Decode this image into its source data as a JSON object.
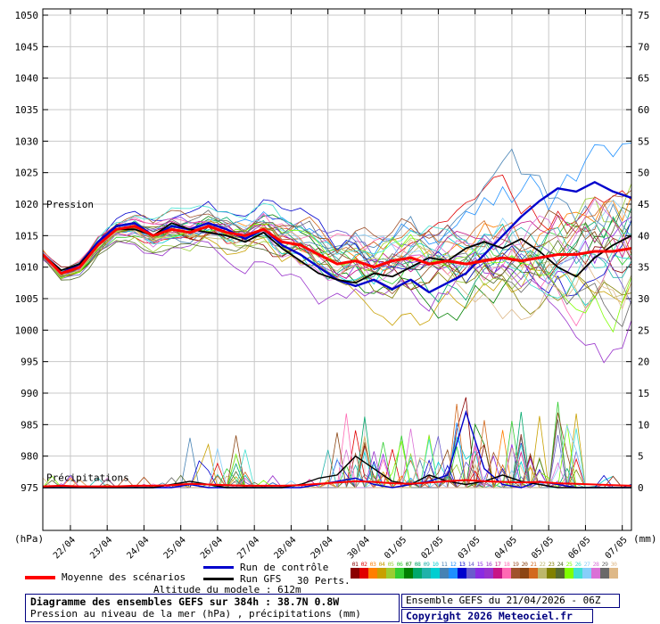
{
  "colors": {
    "background": "#ffffff",
    "grid": "#c8c8c8",
    "frame": "#000000",
    "mean": "#ff0000",
    "control": "#0000cc",
    "gfs": "#000000"
  },
  "chart_data": {
    "type": "line",
    "title": "Diagramme des ensembles GEFS sur 384h : 38.7N 0.8W",
    "subtitle": "Pression au niveau de la mer (hPa) , précipitations (mm)",
    "x_axis": {
      "tick_labels": [
        "22/04",
        "23/04",
        "24/04",
        "25/04",
        "26/04",
        "27/04",
        "28/04",
        "29/04",
        "30/04",
        "01/05",
        "02/05",
        "03/05",
        "04/05",
        "05/05",
        "06/05",
        "07/05"
      ],
      "first_tick_hour": 18,
      "tick_interval_hours": 24,
      "total_hours": 384
    },
    "y_left": {
      "unit": "(hPa)",
      "min": 975,
      "max": 1050,
      "step": 5
    },
    "y_right": {
      "unit": "(mm)",
      "min": 0,
      "max": 75,
      "step": 5
    },
    "labels": {
      "pressure": "Pression",
      "precip": "Précipitations"
    },
    "sample_step_hours": 12,
    "series": [
      {
        "id": "mean",
        "name": "Moyenne des scénarios",
        "color": "#ff0000",
        "width": 3,
        "pressure": [
          1012,
          1009,
          1010,
          1013.5,
          1016,
          1016.5,
          1015,
          1016,
          1015.5,
          1016.5,
          1015.5,
          1015,
          1016,
          1014,
          1013.5,
          1012,
          1010.5,
          1011,
          1010,
          1011,
          1011.5,
          1010.5,
          1011,
          1010.5,
          1011,
          1011.5,
          1011,
          1011.5,
          1012,
          1012,
          1012.5,
          1012.5,
          1013
        ],
        "precip": [
          0.2,
          0.3,
          0.2,
          0.2,
          0.2,
          0.3,
          0.3,
          0.4,
          0.6,
          0.5,
          0.4,
          0.3,
          0.3,
          0.3,
          0.4,
          0.6,
          0.8,
          1,
          0.9,
          0.7,
          0.6,
          0.8,
          1,
          1.2,
          1,
          0.9,
          0.8,
          0.9,
          0.7,
          0.6,
          0.5,
          0.4,
          0.3
        ]
      },
      {
        "id": "control",
        "name": "Run de contrôle",
        "color": "#0000cc",
        "width": 2.4,
        "pressure": [
          1012,
          1009,
          1010.5,
          1014,
          1016.5,
          1017,
          1015,
          1016.5,
          1016,
          1017,
          1016,
          1014.5,
          1016,
          1013.5,
          1012,
          1010,
          1008,
          1007,
          1008,
          1006.5,
          1008,
          1006,
          1007.5,
          1009,
          1012,
          1015,
          1018,
          1020.5,
          1022.5,
          1022,
          1023.5,
          1022,
          1021
        ],
        "precip": [
          0,
          0,
          0,
          0,
          0,
          0,
          0,
          0,
          0.5,
          0,
          0,
          0,
          0,
          0,
          0,
          0.5,
          1,
          1.5,
          0.5,
          0,
          0.5,
          1,
          2,
          12,
          3,
          0.5,
          0,
          1,
          0.5,
          0,
          0,
          0,
          0
        ]
      },
      {
        "id": "gfs",
        "name": "Run GFS",
        "color": "#000000",
        "width": 1.8,
        "pressure": [
          1012,
          1009.5,
          1010.5,
          1013.5,
          1016,
          1016,
          1015,
          1017,
          1016,
          1015.5,
          1015,
          1014,
          1015.5,
          1013,
          1011,
          1009,
          1008,
          1007.5,
          1009,
          1008.5,
          1010,
          1011.5,
          1011,
          1013,
          1014,
          1013,
          1014.5,
          1012.5,
          1010,
          1008.5,
          1011.5,
          1013.5,
          1015
        ],
        "precip": [
          0,
          0,
          0,
          0,
          0,
          0,
          0,
          0.5,
          1,
          0.5,
          0,
          0,
          0,
          0,
          0.5,
          1.5,
          2,
          5,
          3,
          1,
          0.5,
          2,
          1,
          0.5,
          1,
          2,
          1,
          0.5,
          0,
          0,
          0,
          0,
          0
        ]
      }
    ],
    "members": {
      "label": "30 Perts.",
      "count": 30,
      "numbers": [
        "01",
        "02",
        "03",
        "04",
        "05",
        "06",
        "07",
        "08",
        "09",
        "10",
        "11",
        "12",
        "13",
        "14",
        "15",
        "16",
        "17",
        "18",
        "19",
        "20",
        "21",
        "22",
        "23",
        "24",
        "25",
        "26",
        "27",
        "28",
        "29",
        "30"
      ],
      "colors": [
        "#8b0000",
        "#e00000",
        "#ff7f00",
        "#c8a000",
        "#9acd32",
        "#32cd32",
        "#008000",
        "#00a86b",
        "#20b2aa",
        "#00ced1",
        "#4682b4",
        "#1e90ff",
        "#0000cd",
        "#6a5acd",
        "#8a2be2",
        "#9932cc",
        "#c71585",
        "#ff69b4",
        "#a0522d",
        "#8b4513",
        "#d2691e",
        "#bdb76b",
        "#808000",
        "#556b2f",
        "#7fff00",
        "#40e0d0",
        "#87cefa",
        "#da70d6",
        "#696969",
        "#deb887"
      ],
      "pressure_spread_hpa": [
        1,
        9
      ],
      "precip_max_mm": 16
    }
  },
  "footer": {
    "altitude": "Altitude du modele : 612m",
    "title": "Diagramme des ensembles GEFS sur 384h : 38.7N 0.8W",
    "subtitle": "Pression au niveau de la mer (hPa) , précipitations (mm)",
    "run_info": "Ensemble GEFS du 21/04/2026 - 06Z",
    "copyright": "Copyright 2026 Meteociel.fr"
  }
}
